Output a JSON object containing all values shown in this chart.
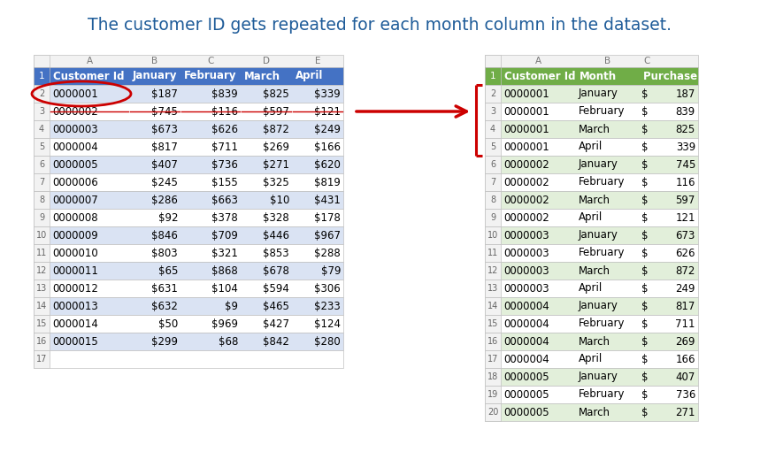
{
  "title": "The customer ID gets repeated for each month column in the dataset.",
  "title_color": "#1F5C99",
  "title_fontsize": 13.5,
  "bg_color": "#FFFFFF",
  "left_table": {
    "header": [
      "Customer Id",
      "January",
      "February",
      "March",
      "April"
    ],
    "header_bg": "#4472C4",
    "header_fg": "#FFFFFF",
    "col_letters": [
      "A",
      "B",
      "C",
      "D",
      "E"
    ],
    "rows": [
      [
        "0000001",
        "$187",
        "$839",
        "$825",
        "$339"
      ],
      [
        "0000002",
        "$745",
        "$116",
        "$597",
        "$121"
      ],
      [
        "0000003",
        "$673",
        "$626",
        "$872",
        "$249"
      ],
      [
        "0000004",
        "$817",
        "$711",
        "$269",
        "$166"
      ],
      [
        "0000005",
        "$407",
        "$736",
        "$271",
        "$620"
      ],
      [
        "0000006",
        "$245",
        "$155",
        "$325",
        "$819"
      ],
      [
        "0000007",
        "$286",
        "$663",
        "$10",
        "$431"
      ],
      [
        "0000008",
        "$92",
        "$378",
        "$328",
        "$178"
      ],
      [
        "0000009",
        "$846",
        "$709",
        "$446",
        "$967"
      ],
      [
        "0000010",
        "$803",
        "$321",
        "$853",
        "$288"
      ],
      [
        "0000011",
        "$65",
        "$868",
        "$678",
        "$79"
      ],
      [
        "0000012",
        "$631",
        "$104",
        "$594",
        "$306"
      ],
      [
        "0000013",
        "$632",
        "$9",
        "$465",
        "$233"
      ],
      [
        "0000014",
        "$50",
        "$969",
        "$427",
        "$124"
      ],
      [
        "0000015",
        "$299",
        "$68",
        "$842",
        "$280"
      ]
    ],
    "row_nums": [
      2,
      3,
      4,
      5,
      6,
      7,
      8,
      9,
      10,
      11,
      12,
      13,
      14,
      15,
      16
    ],
    "alt_rows": [
      0,
      2,
      4,
      6,
      8,
      10,
      12,
      14
    ],
    "alt_color": "#DAE3F3",
    "normal_color": "#FFFFFF",
    "border_color": "#C0C0C0",
    "text_color": "#000000",
    "strikethrough_row": 1
  },
  "right_table": {
    "header": [
      "Customer Id",
      "Month",
      "Purchase Value"
    ],
    "header_bg": "#70AD47",
    "header_fg": "#FFFFFF",
    "col_letters": [
      "A",
      "B",
      "C"
    ],
    "rows": [
      [
        "0000001",
        "January",
        "$",
        "187"
      ],
      [
        "0000001",
        "February",
        "$",
        "839"
      ],
      [
        "0000001",
        "March",
        "$",
        "825"
      ],
      [
        "0000001",
        "April",
        "$",
        "339"
      ],
      [
        "0000002",
        "January",
        "$",
        "745"
      ],
      [
        "0000002",
        "February",
        "$",
        "116"
      ],
      [
        "0000002",
        "March",
        "$",
        "597"
      ],
      [
        "0000002",
        "April",
        "$",
        "121"
      ],
      [
        "0000003",
        "January",
        "$",
        "673"
      ],
      [
        "0000003",
        "February",
        "$",
        "626"
      ],
      [
        "0000003",
        "March",
        "$",
        "872"
      ],
      [
        "0000003",
        "April",
        "$",
        "249"
      ],
      [
        "0000004",
        "January",
        "$",
        "817"
      ],
      [
        "0000004",
        "February",
        "$",
        "711"
      ],
      [
        "0000004",
        "March",
        "$",
        "269"
      ],
      [
        "0000004",
        "April",
        "$",
        "166"
      ],
      [
        "0000005",
        "January",
        "$",
        "407"
      ],
      [
        "0000005",
        "February",
        "$",
        "736"
      ],
      [
        "0000005",
        "March",
        "$",
        "271"
      ]
    ],
    "row_nums": [
      2,
      3,
      4,
      5,
      6,
      7,
      8,
      9,
      10,
      11,
      12,
      13,
      14,
      15,
      16,
      17,
      18,
      19,
      20
    ],
    "alt_rows": [
      0,
      2,
      4,
      6,
      8,
      10,
      12,
      14,
      16,
      18
    ],
    "alt_color": "#E2EFDA",
    "normal_color": "#FFFFFF",
    "border_color": "#C0C0C0",
    "text_color": "#000000"
  },
  "arrow_color": "#CC0000",
  "bracket_color": "#CC0000",
  "ellipse_color": "#CC0000"
}
